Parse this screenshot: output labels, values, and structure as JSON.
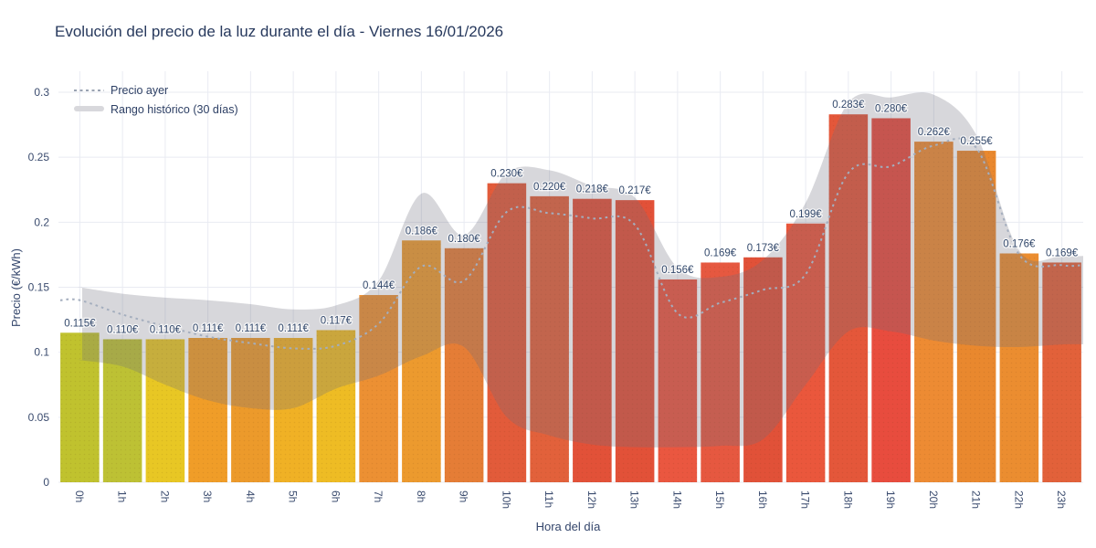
{
  "title": "Evolución del precio de la luz durante el día - Viernes 16/01/2026",
  "legend": {
    "precio_ayer": "Precio ayer",
    "rango_historico": "Rango histórico (30 días)"
  },
  "x_axis": {
    "label": "Hora del día"
  },
  "y_axis": {
    "label": "Precio (€/kWh)"
  },
  "chart_data": {
    "type": "bar",
    "title": "Evolución del precio de la luz durante el día - Viernes 16/01/2026",
    "xlabel": "Hora del día",
    "ylabel": "Precio (€/kWh)",
    "ylim": [
      0,
      0.3
    ],
    "y_ticks": [
      "0",
      "0.05",
      "0.1",
      "0.15",
      "0.2",
      "0.25",
      "0.3"
    ],
    "grid": true,
    "legend_position": "top-left",
    "categories": [
      "0h",
      "1h",
      "2h",
      "3h",
      "4h",
      "5h",
      "6h",
      "7h",
      "8h",
      "9h",
      "10h",
      "11h",
      "12h",
      "13h",
      "14h",
      "15h",
      "16h",
      "17h",
      "18h",
      "19h",
      "20h",
      "21h",
      "22h",
      "23h"
    ],
    "series": [
      {
        "id": "precio_hoy",
        "type": "bar",
        "values": [
          0.115,
          0.11,
          0.11,
          0.111,
          0.111,
          0.111,
          0.117,
          0.144,
          0.186,
          0.18,
          0.23,
          0.22,
          0.218,
          0.217,
          0.156,
          0.169,
          0.173,
          0.199,
          0.283,
          0.28,
          0.262,
          0.255,
          0.176,
          0.169
        ],
        "labels": [
          "0.115€",
          "0.110€",
          "0.110€",
          "0.111€",
          "0.111€",
          "0.111€",
          "0.117€",
          "0.144€",
          "0.186€",
          "0.180€",
          "0.230€",
          "0.220€",
          "0.218€",
          "0.217€",
          "0.156€",
          "0.169€",
          "0.173€",
          "0.199€",
          "0.283€",
          "0.280€",
          "0.262€",
          "0.255€",
          "0.176€",
          "0.169€"
        ],
        "colors": [
          "#c0c22e",
          "#bdc134",
          "#e8c724",
          "#f09d28",
          "#ec9a2b",
          "#f0b125",
          "#eebc24",
          "#ec9033",
          "#ec9a2e",
          "#e57d36",
          "#e25b3a",
          "#e2613b",
          "#e25138",
          "#e25138",
          "#ea5740",
          "#e65840",
          "#e15138",
          "#ea573c",
          "#e4573a",
          "#e84c3e",
          "#ed8b33",
          "#e9882e",
          "#eb8d30",
          "#e2613a"
        ]
      },
      {
        "id": "precio_ayer",
        "name": "Precio ayer",
        "type": "line",
        "style": "dotted",
        "values": [
          0.14,
          0.129,
          0.12,
          0.112,
          0.107,
          0.103,
          0.105,
          0.122,
          0.166,
          0.155,
          0.208,
          0.207,
          0.203,
          0.198,
          0.13,
          0.138,
          0.148,
          0.16,
          0.238,
          0.243,
          0.259,
          0.257,
          0.175,
          0.167
        ]
      },
      {
        "id": "rango_historico",
        "name": "Rango histórico (30 días)",
        "type": "band",
        "upper": [
          0.15,
          0.145,
          0.142,
          0.14,
          0.137,
          0.133,
          0.136,
          0.155,
          0.222,
          0.19,
          0.238,
          0.24,
          0.228,
          0.219,
          0.165,
          0.158,
          0.171,
          0.215,
          0.292,
          0.296,
          0.298,
          0.267,
          0.178,
          0.174
        ],
        "lower": [
          0.094,
          0.089,
          0.075,
          0.063,
          0.057,
          0.057,
          0.072,
          0.082,
          0.097,
          0.104,
          0.05,
          0.036,
          0.029,
          0.027,
          0.027,
          0.028,
          0.033,
          0.075,
          0.116,
          0.116,
          0.109,
          0.105,
          0.104,
          0.106
        ]
      }
    ]
  },
  "colors": {
    "grid": "#e9ebf2",
    "band_fill": "rgba(112,112,124,0.28)",
    "dashed_line": "#a4aebe",
    "legend_dash": "#9aa3b2",
    "legend_band": "#d8d8dc",
    "tick_text": "#3a4b6e"
  }
}
